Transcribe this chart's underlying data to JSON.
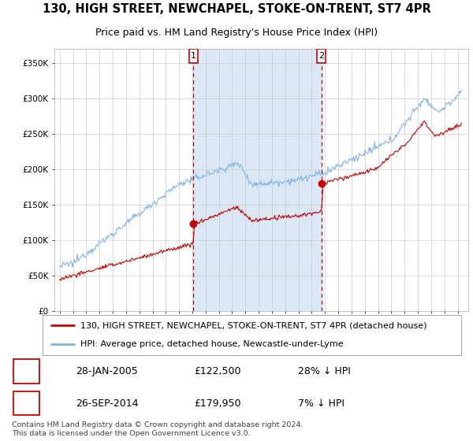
{
  "title": "130, HIGH STREET, NEWCHAPEL, STOKE-ON-TRENT, ST7 4PR",
  "subtitle": "Price paid vs. HM Land Registry's House Price Index (HPI)",
  "ylim": [
    0,
    370000
  ],
  "yticks": [
    0,
    50000,
    100000,
    150000,
    200000,
    250000,
    300000,
    350000
  ],
  "ytick_labels": [
    "£0",
    "£50K",
    "£100K",
    "£150K",
    "£200K",
    "£250K",
    "£300K",
    "£350K"
  ],
  "legend_entry1": "130, HIGH STREET, NEWCHAPEL, STOKE-ON-TRENT, ST7 4PR (detached house)",
  "legend_entry2": "HPI: Average price, detached house, Newcastle-under-Lyme",
  "transaction1_label": "1",
  "transaction1_date": "28-JAN-2005",
  "transaction1_price": "£122,500",
  "transaction1_hpi": "28% ↓ HPI",
  "transaction1_year": 2005.07,
  "transaction1_value": 122500,
  "transaction2_label": "2",
  "transaction2_date": "26-SEP-2014",
  "transaction2_price": "£179,950",
  "transaction2_hpi": "7% ↓ HPI",
  "transaction2_year": 2014.73,
  "transaction2_value": 179950,
  "hpi_color": "#7EB6E8",
  "price_color": "#CC0000",
  "marker_color": "#CC0000",
  "shade_color": "#DAE8F5",
  "bg_color": "#FFFFFF",
  "grid_color": "#CCCCCC",
  "footer_text": "Contains HM Land Registry data © Crown copyright and database right 2024.\nThis data is licensed under the Open Government Licence v3.0.",
  "title_fontsize": 10.5,
  "subtitle_fontsize": 9,
  "tick_fontsize": 7.5,
  "legend_fontsize": 8,
  "table_fontsize": 9
}
